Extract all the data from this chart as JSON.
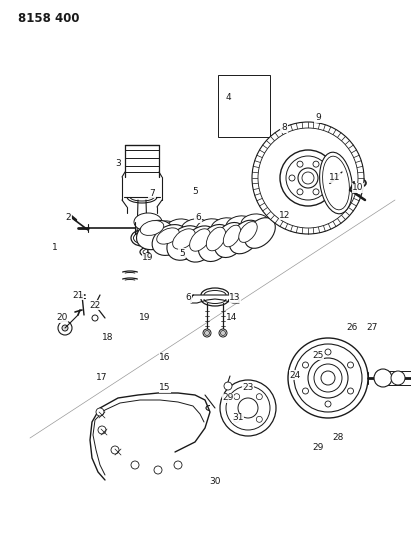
{
  "title": "8158 400",
  "bg": "#ffffff",
  "lc": "#1a1a1a",
  "figsize": [
    4.11,
    5.33
  ],
  "dpi": 100,
  "labels": [
    [
      "1",
      55,
      248
    ],
    [
      "2",
      68,
      218
    ],
    [
      "3",
      118,
      163
    ],
    [
      "4",
      228,
      98
    ],
    [
      "5",
      195,
      192
    ],
    [
      "5",
      182,
      253
    ],
    [
      "6",
      198,
      218
    ],
    [
      "6",
      188,
      298
    ],
    [
      "7",
      152,
      193
    ],
    [
      "8",
      284,
      128
    ],
    [
      "9",
      318,
      118
    ],
    [
      "10",
      358,
      188
    ],
    [
      "11",
      335,
      178
    ],
    [
      "12",
      285,
      215
    ],
    [
      "13",
      235,
      298
    ],
    [
      "14",
      232,
      318
    ],
    [
      "15",
      165,
      388
    ],
    [
      "16",
      165,
      358
    ],
    [
      "17",
      102,
      378
    ],
    [
      "18",
      108,
      338
    ],
    [
      "19",
      148,
      258
    ],
    [
      "19",
      145,
      318
    ],
    [
      "20",
      62,
      318
    ],
    [
      "21",
      78,
      295
    ],
    [
      "22",
      95,
      305
    ],
    [
      "23",
      248,
      388
    ],
    [
      "24",
      295,
      375
    ],
    [
      "25",
      318,
      355
    ],
    [
      "26",
      352,
      328
    ],
    [
      "27",
      372,
      328
    ],
    [
      "28",
      338,
      438
    ],
    [
      "29",
      228,
      398
    ],
    [
      "29",
      318,
      448
    ],
    [
      "30",
      215,
      482
    ],
    [
      "31",
      238,
      418
    ]
  ]
}
